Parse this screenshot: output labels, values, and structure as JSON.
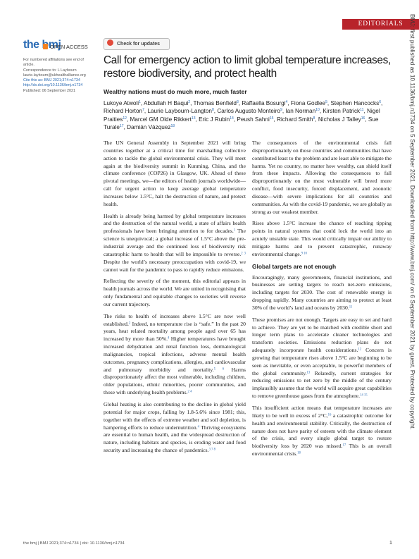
{
  "header": {
    "section": "EDITORIALS",
    "logo": "the bmj",
    "open_access": "OPEN ACCESS",
    "check_updates": "Check for updates"
  },
  "sidebar": [
    "For numbered affiliations see end of article.",
    "Correspondence to: L Laybourn laurie.laybourn@ukhealthalliance.org",
    "Cite this as: BMJ 2021;374:n1734",
    "http://dx.doi.org/10.1136/bmj.n1734",
    "Published: 06 September 2021"
  ],
  "article": {
    "title": "Call for emergency action to limit global temperature increases, restore biodiversity, and protect health",
    "subtitle": "Wealthy nations must do much more, much faster",
    "authors": [
      "Lukoye Atwoli",
      "1",
      ", Abdullah H Baqui",
      "2",
      ", Thomas Benfield",
      "3",
      ", Raffaella Bosurgi",
      "4",
      ", Fiona Godlee",
      "5",
      ", Stephen Hancocks",
      "6",
      ", Richard Horton",
      "7",
      ", Laurie Laybourn-Langton",
      "8",
      ", Carlos Augusto Monteiro",
      "9",
      ", Ian Norman",
      "10",
      ", Kirsten Patrick",
      "11",
      ", Nigel Praities",
      "12",
      ", Marcel GM Olde Rikkert",
      "13",
      ", Eric J Rubin",
      "14",
      ", Peush Sahni",
      "15",
      ", Richard Smith",
      "8",
      ", Nicholas J Talley",
      "16",
      ", Sue Turale",
      "17",
      ", Damián Vázquez",
      "18"
    ]
  },
  "body": {
    "columns": [
      {
        "paragraphs": [
          [
            "The UN General Assembly in September 2021 will bring countries together at a critical time for marshalling collective action to tackle the global environmental crisis. They will meet again at the biodiversity summit in Kunming, China, and the climate conference (COP26) in Glasgow, UK. Ahead of these pivotal meetings, we—the editors of health journals worldwide—call for urgent action to keep average global temperature increases below 1.5°C, halt the destruction of nature, and protect health."
          ],
          [
            "Health is already being harmed by global temperature increases and the destruction of the natural world, a state of affairs health professionals have been bringing attention to for decades.",
            "1",
            " The science is unequivocal; a global increase of 1.5°C above the pre-industrial average and the continued loss of biodiversity risk catastrophic harm to health that will be impossible to reverse.",
            "2 3",
            " Despite the world’s necessary preoccupation with covid-19, we cannot wait for the pandemic to pass to rapidly reduce emissions."
          ],
          [
            "Reflecting the severity of the moment, this editorial appears in health journals across the world. We are united in recognising that only fundamental and equitable changes to societies will reverse our current trajectory."
          ],
          [
            "The risks to health of increases above 1.5°C are now well established.",
            "2",
            " Indeed, no temperature rise is “safe.” In the past 20 years, heat related mortality among people aged over 65 has increased by more than 50%.",
            "4",
            " Higher temperatures have brought increased dehydration and renal function loss, dermatological malignancies, tropical infections, adverse mental health outcomes, pregnancy complications, allergies, and cardiovascular and pulmonary morbidity and mortality.",
            "5 6",
            " Harms disproportionately affect the most vulnerable, including children, older populations, ethnic minorities, poorer communities, and those with underlying health problems.",
            "2 4"
          ],
          [
            "Global heating is also contributing to the decline in global yield potential for major crops, falling by 1.8-5.6% since 1981; this, together with the effects of extreme weather and soil depletion, is hampering efforts to reduce undernutrition.",
            "4",
            " Thriving ecosystems are essential to human health, and the widespread destruction of nature, including habitats and species, is eroding water and food security and increasing the chance of pandemics.",
            "3 7 8"
          ]
        ]
      },
      {
        "paragraphs": [
          [
            "The consequences of the environmental crisis fall disproportionately on those countries and communities that have contributed least to the problem and are least able to mitigate the harms. Yet no country, no matter how wealthy, can shield itself from these impacts. Allowing the consequences to fall disproportionately on the most vulnerable will breed more conflict, food insecurity, forced displacement, and zoonotic disease—with severe implications for all countries and communities. As with the covid-19 pandemic, we are globally as strong as our weakest member."
          ],
          [
            "Rises above 1.5°C increase the chance of reaching tipping points in natural systems that could lock the world into an acutely unstable state. This would critically impair our ability to mitigate harms and to prevent catastrophic, runaway environmental change.",
            "9 10"
          ]
        ],
        "section": {
          "heading": "Global targets are not enough",
          "paragraphs": [
            [
              "Encouragingly, many governments, financial institutions, and businesses are setting targets to reach net-zero emissions, including targets for 2030. The cost of renewable energy is dropping rapidly. Many countries are aiming to protect at least 30% of the world’s land and oceans by 2030.",
              "11"
            ],
            [
              "These promises are not enough. Targets are easy to set and hard to achieve. They are yet to be matched with credible short and longer term plans to accelerate cleaner technologies and transform societies. Emissions reduction plans do not adequately incorporate health considerations.",
              "12",
              " Concern is growing that temperature rises above 1.5°C are beginning to be seen as inevitable, or even acceptable, to powerful members of the global community.",
              "13",
              " Relatedly, current strategies for reducing emissions to net zero by the middle of the century implausibly assume that the world will acquire great capabilities to remove greenhouse gases from the atmosphere.",
              "14 15"
            ],
            [
              "This insufficient action means that temperature increases are likely to be well in excess of 2°C,",
              "16",
              " a catastrophic outcome for health and environmental stability. Critically, the destruction of nature does not have parity of esteem with the climate element of the crisis, and every single global target to restore biodiversity loss by 2020 was missed.",
              "17",
              " This is an overall environmental crisis.",
              "18"
            ]
          ]
        }
      }
    ]
  },
  "footer": {
    "citation": "the bmj | BMJ 2021;374:n1734 | doi: 10.1136/bmj.n1734",
    "page": "1"
  },
  "margin_note": "BMJ: first published as 10.1136/bmj.n1734 on 5 September 2021. Downloaded from http://www.bmj.com/ on 6 September 2021 by guest. Protected by copyright."
}
